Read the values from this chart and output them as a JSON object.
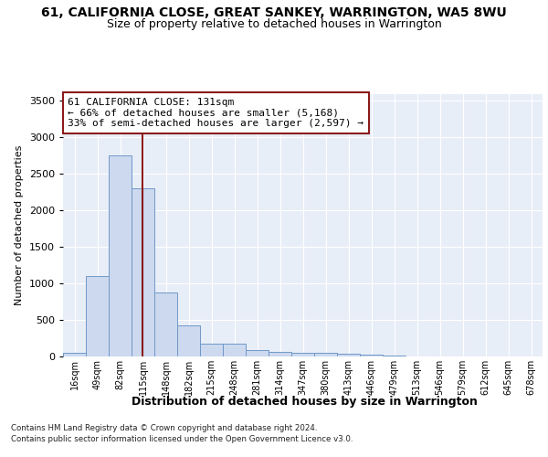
{
  "title": "61, CALIFORNIA CLOSE, GREAT SANKEY, WARRINGTON, WA5 8WU",
  "subtitle": "Size of property relative to detached houses in Warrington",
  "xlabel": "Distribution of detached houses by size in Warrington",
  "ylabel": "Number of detached properties",
  "bin_labels": [
    "16sqm",
    "49sqm",
    "82sqm",
    "115sqm",
    "148sqm",
    "182sqm",
    "215sqm",
    "248sqm",
    "281sqm",
    "314sqm",
    "347sqm",
    "380sqm",
    "413sqm",
    "446sqm",
    "479sqm",
    "513sqm",
    "546sqm",
    "579sqm",
    "612sqm",
    "645sqm",
    "678sqm"
  ],
  "bar_values": [
    50,
    1100,
    2750,
    2300,
    880,
    430,
    170,
    170,
    90,
    65,
    50,
    50,
    35,
    20,
    10,
    5,
    5,
    2,
    2,
    1,
    1
  ],
  "bar_color": "#ccd9ef",
  "bar_edge_color": "#7098c8",
  "annotation_line1": "61 CALIFORNIA CLOSE: 131sqm",
  "annotation_line2": "← 66% of detached houses are smaller (5,168)",
  "annotation_line3": "33% of semi-detached houses are larger (2,597) →",
  "vline_color": "#8b1a1a",
  "annotation_box_color": "#ffffff",
  "annotation_box_edge": "#8b1a1a",
  "ylim": [
    0,
    3600
  ],
  "yticks": [
    0,
    500,
    1000,
    1500,
    2000,
    2500,
    3000,
    3500
  ],
  "background_color": "#e8eef8",
  "footer1": "Contains HM Land Registry data © Crown copyright and database right 2024.",
  "footer2": "Contains public sector information licensed under the Open Government Licence v3.0.",
  "title_fontsize": 10,
  "subtitle_fontsize": 9,
  "annotation_fontsize": 8,
  "ylabel_fontsize": 8,
  "xlabel_fontsize": 9
}
